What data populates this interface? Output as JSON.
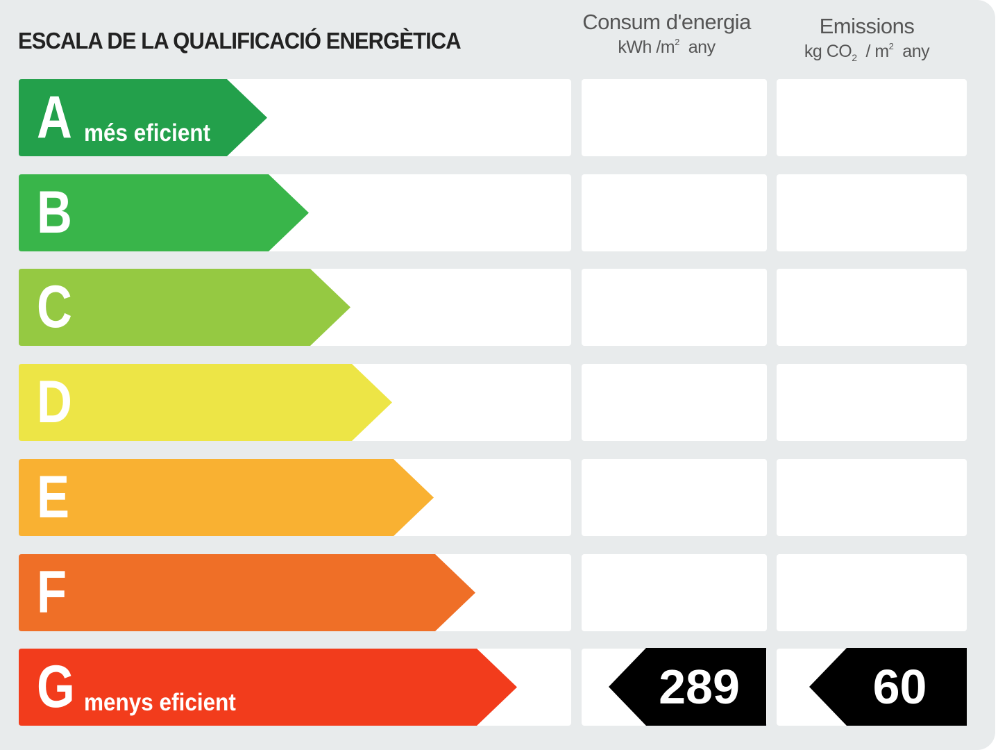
{
  "title": "ESCALA DE LA QUALIFICACIÓ ENERGÈTICA",
  "columns": {
    "energy": {
      "title": "Consum d'energia",
      "unit_a": "kWh /m",
      "unit_sup": "2",
      "unit_b": "any"
    },
    "emissions": {
      "title": "Emissions",
      "unit_a": "kg CO",
      "unit_sub": "2",
      "unit_mid": "/ m",
      "unit_sup": "2",
      "unit_b": "any"
    }
  },
  "ratings": [
    {
      "letter": "A",
      "subtitle": "més eficient",
      "color": "#23a04b"
    },
    {
      "letter": "B",
      "subtitle": "",
      "color": "#39b54a"
    },
    {
      "letter": "C",
      "subtitle": "",
      "color": "#95c942"
    },
    {
      "letter": "D",
      "subtitle": "",
      "color": "#ede546"
    },
    {
      "letter": "E",
      "subtitle": "",
      "color": "#f9b132"
    },
    {
      "letter": "F",
      "subtitle": "",
      "color": "#ef6f27"
    },
    {
      "letter": "G",
      "subtitle": "menys eficient",
      "color": "#f23c1c"
    }
  ],
  "result": {
    "rating": "G",
    "energy_value": "289",
    "emissions_value": "60",
    "badge_color": "#000000"
  }
}
